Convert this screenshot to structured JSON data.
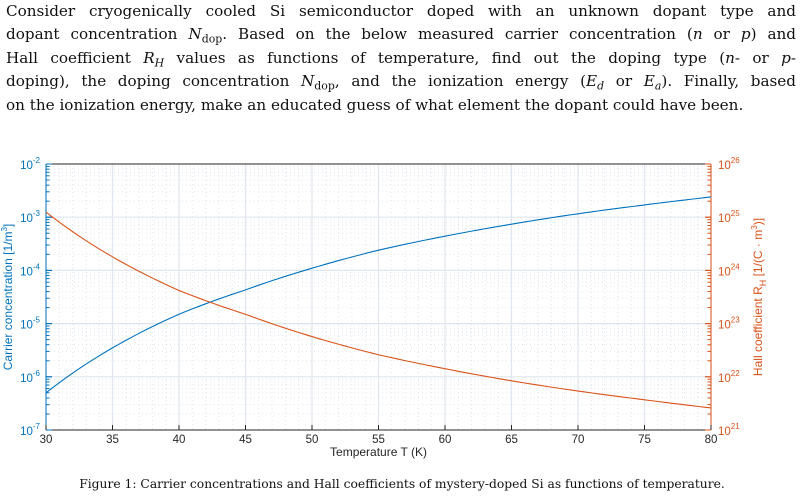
{
  "problem": {
    "lines": [
      [
        {
          "text": "Consider cryogenically cooled Si semiconductor doped with an unknown dopant type and"
        }
      ],
      [
        {
          "text": "dopant concentration "
        },
        {
          "text": "N",
          "math": true,
          "sub": "dop"
        },
        {
          "text": ". Based on the below measured carrier concentration ("
        },
        {
          "text": "n",
          "math": true
        },
        {
          "text": " or "
        },
        {
          "text": "p",
          "math": true
        },
        {
          "text": ") and"
        }
      ],
      [
        {
          "text": "Hall coefficient "
        },
        {
          "text": "R",
          "math": true,
          "subi": "H"
        },
        {
          "text": " values as functions of temperature, find out the doping type ("
        },
        {
          "text": "n",
          "math": true
        },
        {
          "text": "- or "
        },
        {
          "text": "p",
          "math": true
        },
        {
          "text": "-"
        }
      ],
      [
        {
          "text": "doping), the doping concentration "
        },
        {
          "text": "N",
          "math": true,
          "sub": "dop"
        },
        {
          "text": ", and the ionization energy ("
        },
        {
          "text": "E",
          "math": true,
          "subi": "d"
        },
        {
          "text": " or "
        },
        {
          "text": "E",
          "math": true,
          "subi": "a"
        },
        {
          "text": "). Finally, based"
        }
      ],
      [
        {
          "text": "on the ionization energy, make an educated guess of what element the dopant could have been."
        }
      ]
    ]
  },
  "caption": "Figure 1: Carrier concentrations and Hall coefficients of mystery-doped Si as functions of temperature.",
  "chart_data": {
    "type": "line",
    "xlabel": "Temperature T (K)",
    "ylabel_left": "Carrier concentration [1/m³]",
    "ylabel_right": "Hall coefficient Rₕ [1/(C · m³)]",
    "ylabel_right_parts": {
      "pre": "Hall coefficient R",
      "sub": "H",
      "post": " [1/(C · m",
      "sup": "3",
      "end": ")]"
    },
    "ylabel_left_parts": {
      "pre": "Carrier concentration [1/m",
      "sup": "3",
      "end": "]"
    },
    "xlim": [
      30,
      80
    ],
    "xticks": [
      "30",
      "35",
      "40",
      "45",
      "50",
      "55",
      "60",
      "65",
      "70",
      "75",
      "80"
    ],
    "ylim_left": [
      1e-07,
      0.01
    ],
    "ylim_right": [
      1e+21,
      1e+26
    ],
    "yscale": "log",
    "yticks_left": [
      {
        "base": "10",
        "exp": "-7"
      },
      {
        "base": "10",
        "exp": "-6"
      },
      {
        "base": "10",
        "exp": "-5"
      },
      {
        "base": "10",
        "exp": "-4"
      },
      {
        "base": "10",
        "exp": "-3"
      },
      {
        "base": "10",
        "exp": "-2"
      }
    ],
    "yticks_right": [
      {
        "base": "10",
        "exp": "21"
      },
      {
        "base": "10",
        "exp": "22"
      },
      {
        "base": "10",
        "exp": "23"
      },
      {
        "base": "10",
        "exp": "24"
      },
      {
        "base": "10",
        "exp": "25"
      },
      {
        "base": "10",
        "exp": "26"
      }
    ],
    "grid": true,
    "minor_grid": true,
    "x": [
      30,
      35,
      40,
      45,
      50,
      55,
      60,
      65,
      70,
      75,
      80
    ],
    "series": [
      {
        "axis": "left",
        "color": "#0072BD",
        "values": [
          5e-07,
          3.5e-06,
          1.5e-05,
          4.3e-05,
          0.00011,
          0.00024,
          0.00044,
          0.00074,
          0.00116,
          0.0017,
          0.0024
        ]
      },
      {
        "axis": "right",
        "color": "#D95319",
        "values": [
          1.25e+25,
          1.8e+24,
          4.2e+23,
          1.5e+23,
          5.7e+22,
          2.6e+22,
          1.42e+22,
          8.4e+21,
          5.4e+21,
          3.7e+21,
          2.6e+21
        ]
      }
    ],
    "colors": {
      "left_axis": "#0072BD",
      "right_axis": "#D95319",
      "grid": "#dfe6ee",
      "box": "#262626"
    }
  }
}
